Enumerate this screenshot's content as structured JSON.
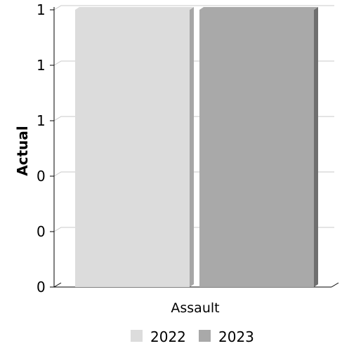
{
  "chart_data": {
    "type": "bar",
    "title": "",
    "xlabel": "",
    "ylabel": "Actual",
    "categories": [
      "Assault"
    ],
    "series": [
      {
        "name": "2022",
        "values": [
          1
        ],
        "color": "#dcdcdc",
        "side_color": "#a6a6a6"
      },
      {
        "name": "2023",
        "values": [
          1
        ],
        "color": "#a9a9a9",
        "side_color": "#6f6f6f"
      }
    ],
    "ylim": [
      0,
      1
    ],
    "y_tick_labels": [
      "0",
      "0",
      "0",
      "1",
      "1",
      "1"
    ],
    "grid": true,
    "legend_position": "bottom",
    "bar_style": "3d"
  }
}
